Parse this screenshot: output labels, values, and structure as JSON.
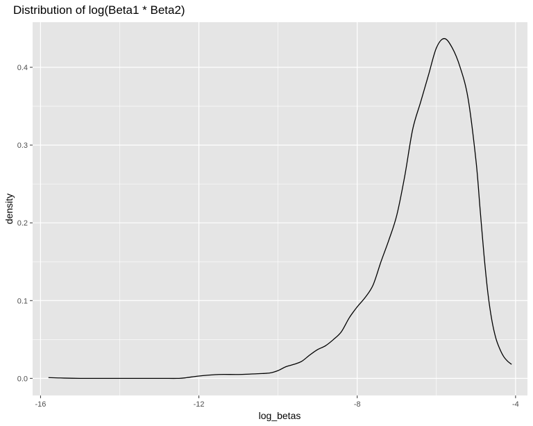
{
  "chart_data": {
    "type": "line",
    "title": "Distribution of log(Beta1 * Beta2)",
    "xlabel": "log_betas",
    "ylabel": "density",
    "xlim": [
      -16.2,
      -3.7
    ],
    "ylim": [
      -0.022,
      0.458
    ],
    "x_ticks": [
      -16,
      -12,
      -8,
      -4
    ],
    "x_tick_labels": [
      "-16",
      "-12",
      "-8",
      "-4"
    ],
    "y_ticks": [
      0.0,
      0.1,
      0.2,
      0.3,
      0.4
    ],
    "y_tick_labels": [
      "0.0",
      "0.1",
      "0.2",
      "0.3",
      "0.4"
    ],
    "grid": true,
    "background": "#e5e5e5",
    "grid_color": "#ffffff",
    "line_color": "#000000",
    "series": [
      {
        "x": [
          -15.8,
          -15.5,
          -15.0,
          -14.0,
          -13.0,
          -12.5,
          -12.3,
          -12.0,
          -11.5,
          -11.0,
          -10.5,
          -10.2,
          -10.0,
          -9.8,
          -9.6,
          -9.4,
          -9.2,
          -9.0,
          -8.8,
          -8.6,
          -8.4,
          -8.2,
          -8.0,
          -7.8,
          -7.6,
          -7.4,
          -7.2,
          -7.0,
          -6.8,
          -6.6,
          -6.4,
          -6.2,
          -6.0,
          -5.8,
          -5.6,
          -5.4,
          -5.2,
          -5.0,
          -4.9,
          -4.8,
          -4.7,
          -4.6,
          -4.5,
          -4.4,
          -4.3,
          -4.2,
          -4.1
        ],
        "y": [
          0.001,
          0.0005,
          0.0,
          0.0,
          0.0,
          0.0,
          0.001,
          0.003,
          0.005,
          0.005,
          0.006,
          0.007,
          0.01,
          0.015,
          0.018,
          0.022,
          0.03,
          0.037,
          0.042,
          0.05,
          0.06,
          0.078,
          0.092,
          0.104,
          0.12,
          0.15,
          0.178,
          0.21,
          0.26,
          0.32,
          0.355,
          0.39,
          0.425,
          0.437,
          0.425,
          0.4,
          0.36,
          0.28,
          0.22,
          0.16,
          0.11,
          0.075,
          0.052,
          0.038,
          0.028,
          0.022,
          0.018
        ]
      }
    ]
  }
}
